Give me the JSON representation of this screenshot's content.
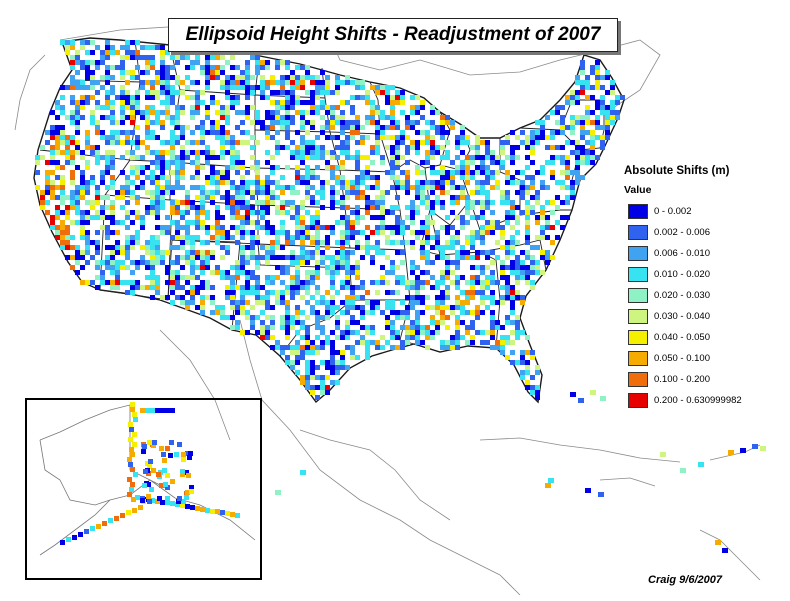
{
  "map": {
    "title": "Ellipsoid Height Shifts - Readjustment of 2007",
    "credit": "Craig 9/6/2007"
  },
  "legend": {
    "title": "Absolute Shifts (m)",
    "subtitle": "Value",
    "classes": [
      {
        "label": "0 - 0.002",
        "color": "#0000e6"
      },
      {
        "label": "0.002 - 0.006",
        "color": "#2e62ef"
      },
      {
        "label": "0.006 - 0.010",
        "color": "#3fa3f2"
      },
      {
        "label": "0.010 - 0.020",
        "color": "#37e3f0"
      },
      {
        "label": "0.020 - 0.030",
        "color": "#8ef2c5"
      },
      {
        "label": "0.030 - 0.040",
        "color": "#cef580"
      },
      {
        "label": "0.040 - 0.050",
        "color": "#f5f000"
      },
      {
        "label": "0.050 - 0.100",
        "color": "#f5ab00"
      },
      {
        "label": "0.100 - 0.200",
        "color": "#f06d0c"
      },
      {
        "label": "0.200 - 0.630999982",
        "color": "#e60000"
      }
    ]
  },
  "colors": {
    "boundary": "#222222",
    "faint_boundary": "#888888",
    "background": "#ffffff"
  }
}
